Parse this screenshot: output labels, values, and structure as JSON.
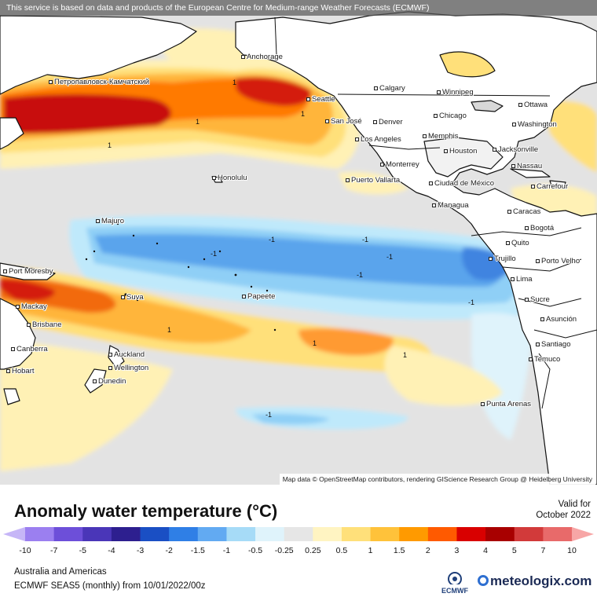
{
  "banner": "This service is based on data and products of the European Centre for Medium-range Weather Forecasts (ECMWF)",
  "credits": "Map data © OpenStreetMap contributors, rendering GIScience Research Group @ Heidelberg University",
  "legend": {
    "title": "Anomaly water temperature (°C)",
    "valid_label": "Valid for",
    "valid_date": "October 2022",
    "ticks": [
      "-10",
      "-7",
      "-5",
      "-4",
      "-3",
      "-2",
      "-1.5",
      "-1",
      "-0.5",
      "-0.25",
      "0.25",
      "0.5",
      "1",
      "1.5",
      "2",
      "3",
      "4",
      "5",
      "7",
      "10"
    ],
    "colors": [
      "#c6b6f7",
      "#9b7ff0",
      "#6d4fd9",
      "#4a36b8",
      "#2d1f8f",
      "#1a4fc4",
      "#2f7fe6",
      "#62aaf2",
      "#a6dbf7",
      "#dff3fb",
      "#e6e6e6",
      "#fff4c2",
      "#ffe07a",
      "#ffc23a",
      "#ff9a00",
      "#ff5a00",
      "#d90000",
      "#a80000",
      "#d23a3a",
      "#e86a6a",
      "#f7a6a6"
    ]
  },
  "footer": {
    "region": "Australia and Americas",
    "model": "ECMWF SEAS5 (monthly)  from  10/01/2022/00z"
  },
  "logos": {
    "ecmwf": "ECMWF",
    "meteologix": "meteologix.com"
  },
  "cities": [
    {
      "name": "Anchorage"
    },
    {
      "name": "Петропавловск-Камчатский"
    },
    {
      "name": "Calgary"
    },
    {
      "name": "Winnipeg"
    },
    {
      "name": "Ottawa"
    },
    {
      "name": "Seattle"
    },
    {
      "name": "Chicago"
    },
    {
      "name": "Washington"
    },
    {
      "name": "San José"
    },
    {
      "name": "Denver"
    },
    {
      "name": "Memphis"
    },
    {
      "name": "Los Angeles"
    },
    {
      "name": "Houston"
    },
    {
      "name": "Jacksonville"
    },
    {
      "name": "Monterrey"
    },
    {
      "name": "Nassau"
    },
    {
      "name": "Honolulu"
    },
    {
      "name": "Puerto Vallarta"
    },
    {
      "name": "Ciudad de México"
    },
    {
      "name": "Carrefour"
    },
    {
      "name": "Managua"
    },
    {
      "name": "Caracas"
    },
    {
      "name": "Majuro"
    },
    {
      "name": "Bogotá"
    },
    {
      "name": "Quito"
    },
    {
      "name": "Trujillo"
    },
    {
      "name": "Porto Velho"
    },
    {
      "name": "Port Moresby"
    },
    {
      "name": "Lima"
    },
    {
      "name": "Papeete"
    },
    {
      "name": "Suva"
    },
    {
      "name": "Sucre"
    },
    {
      "name": "Mackay"
    },
    {
      "name": "Asunción"
    },
    {
      "name": "Brisbane"
    },
    {
      "name": "Santiago"
    },
    {
      "name": "Canberra"
    },
    {
      "name": "Auckland"
    },
    {
      "name": "Temuco"
    },
    {
      "name": "Hobart"
    },
    {
      "name": "Wellington"
    },
    {
      "name": "Dunedin"
    },
    {
      "name": "Punta Arenas"
    }
  ],
  "contour_label": "1",
  "contour_label_neg": "-1"
}
